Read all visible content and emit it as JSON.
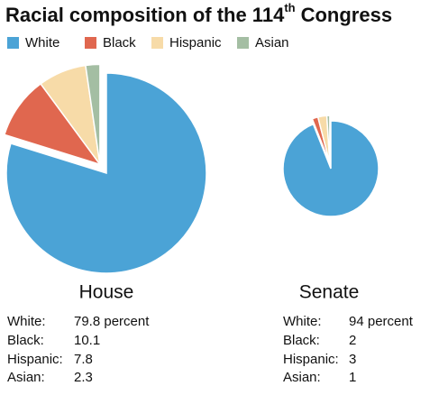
{
  "title_parts": [
    "Racial composition of the 114",
    "th",
    "Congress"
  ],
  "chart_data": [
    {
      "type": "pie",
      "title": "House",
      "categories": [
        "White",
        "Black",
        "Hispanic",
        "Asian"
      ],
      "colors": [
        "#4ba3d6",
        "#e0674f",
        "#f7dba8",
        "#a4bea3"
      ],
      "values": [
        79.8,
        10.1,
        7.8,
        2.3
      ],
      "value_labels": [
        "79.8 percent",
        "10.1",
        "7.8",
        "2.3"
      ],
      "row_labels": [
        "White:",
        "Black:",
        "Hispanic:",
        "Asian:"
      ]
    },
    {
      "type": "pie",
      "title": "Senate",
      "categories": [
        "White",
        "Black",
        "Hispanic",
        "Asian"
      ],
      "colors": [
        "#4ba3d6",
        "#e0674f",
        "#f7dba8",
        "#a4bea3"
      ],
      "values": [
        94,
        2,
        3,
        1
      ],
      "value_labels": [
        "94 percent",
        "2",
        "3",
        "1"
      ],
      "row_labels": [
        "White:",
        "Black:",
        "Hispanic:",
        "Asian:"
      ]
    }
  ]
}
